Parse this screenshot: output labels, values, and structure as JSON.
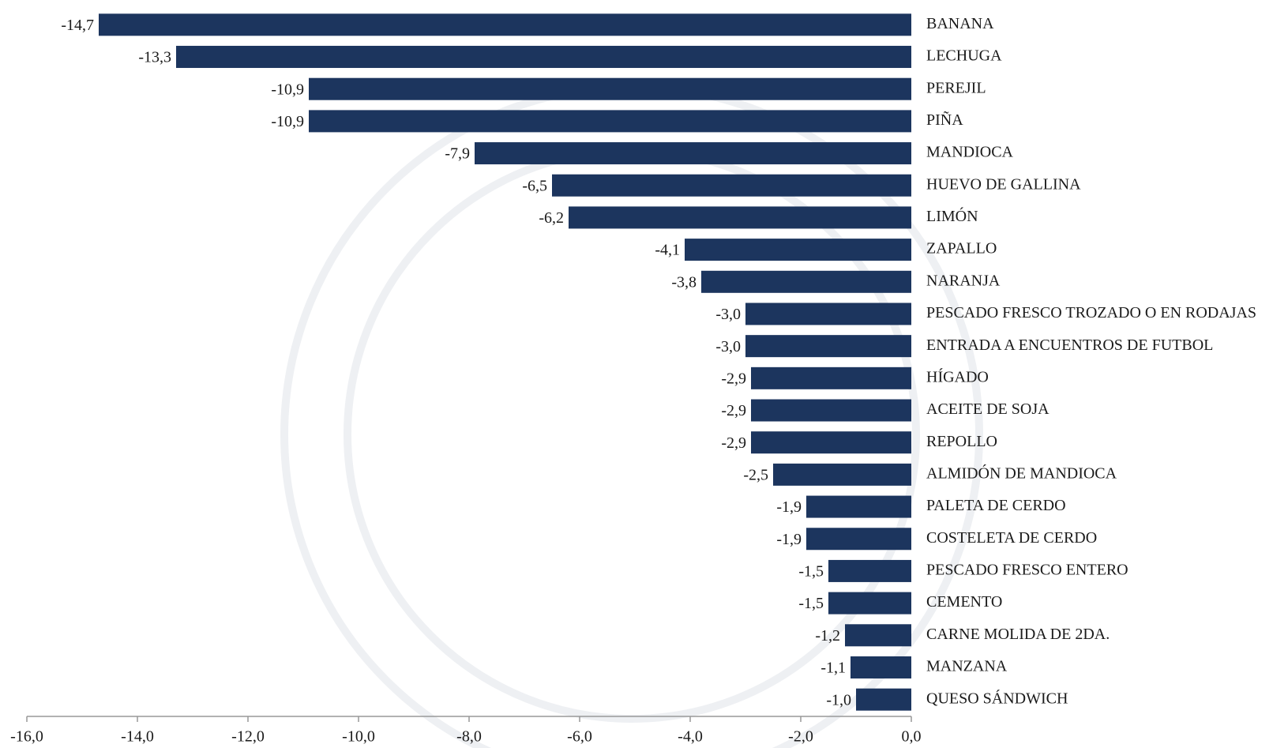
{
  "chart_data": {
    "type": "bar",
    "orientation": "horizontal",
    "categories": [
      "BANANA",
      "LECHUGA",
      "PEREJIL",
      "PIÑA",
      "MANDIOCA",
      "HUEVO DE GALLINA",
      "LIMÓN",
      "ZAPALLO",
      "NARANJA",
      "PESCADO FRESCO TROZADO O EN RODAJAS",
      "ENTRADA A ENCUENTROS DE FUTBOL",
      "HÍGADO",
      "ACEITE DE SOJA",
      "REPOLLO",
      "ALMIDÓN DE MANDIOCA",
      "PALETA DE CERDO",
      "COSTELETA DE CERDO",
      "PESCADO FRESCO ENTERO",
      "CEMENTO",
      "CARNE MOLIDA DE 2DA.",
      "MANZANA",
      "QUESO SÁNDWICH"
    ],
    "values": [
      -14.7,
      -13.3,
      -10.9,
      -10.9,
      -7.9,
      -6.5,
      -6.2,
      -4.1,
      -3.8,
      -3.0,
      -3.0,
      -2.9,
      -2.9,
      -2.9,
      -2.5,
      -1.9,
      -1.9,
      -1.5,
      -1.5,
      -1.2,
      -1.1,
      -1.0
    ],
    "value_labels": [
      "-14,7",
      "-13,3",
      "-10,9",
      "-10,9",
      "-7,9",
      "-6,5",
      "-6,2",
      "-4,1",
      "-3,8",
      "-3,0",
      "-3,0",
      "-2,9",
      "-2,9",
      "-2,9",
      "-2,5",
      "-1,9",
      "-1,9",
      "-1,5",
      "-1,5",
      "-1,2",
      "-1,1",
      "-1,0"
    ],
    "color": "#1c355e",
    "xlim": [
      -16,
      0
    ],
    "xticks": [
      {
        "value": -16,
        "label": "-16,0"
      },
      {
        "value": -14,
        "label": "-14,0"
      },
      {
        "value": -12,
        "label": "-12,0"
      },
      {
        "value": -10,
        "label": "-10,0"
      },
      {
        "value": -8,
        "label": "-8,0"
      },
      {
        "value": -6,
        "label": "-6,0"
      },
      {
        "value": -4,
        "label": "-4,0"
      },
      {
        "value": -2,
        "label": "-2,0"
      },
      {
        "value": 0,
        "label": "0,0"
      }
    ],
    "grid": false
  }
}
